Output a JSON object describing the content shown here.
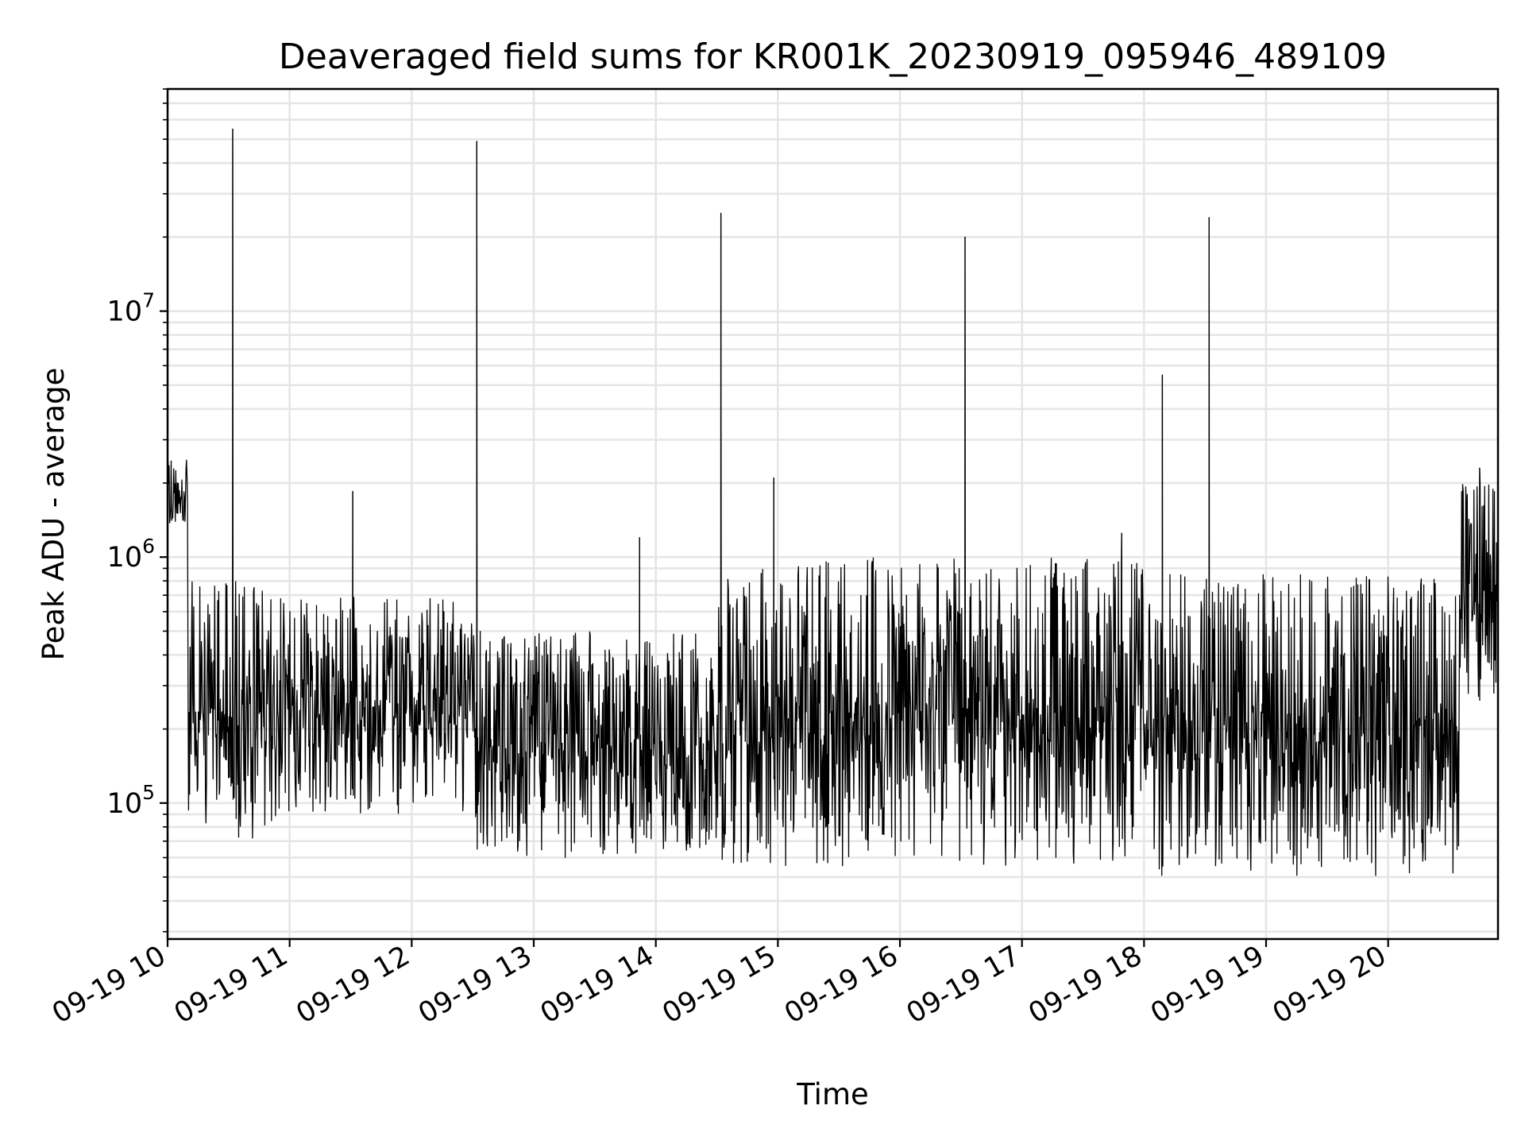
{
  "chart_data": {
    "type": "line",
    "title": "Deaveraged field sums for KR001K_20230919_095946_489109",
    "xlabel": "Time",
    "ylabel": "Peak ADU - average",
    "yscale": "log",
    "grid": true,
    "xlim": [
      "2023-09-19 10:00",
      "2023-09-19 20:54"
    ],
    "ylim": [
      28000,
      80000000
    ],
    "x_ticks": [
      {
        "label": "09-19 10",
        "value": "2023-09-19 10:00"
      },
      {
        "label": "09-19 11",
        "value": "2023-09-19 11:00"
      },
      {
        "label": "09-19 12",
        "value": "2023-09-19 12:00"
      },
      {
        "label": "09-19 13",
        "value": "2023-09-19 13:00"
      },
      {
        "label": "09-19 14",
        "value": "2023-09-19 14:00"
      },
      {
        "label": "09-19 15",
        "value": "2023-09-19 15:00"
      },
      {
        "label": "09-19 16",
        "value": "2023-09-19 16:00"
      },
      {
        "label": "09-19 17",
        "value": "2023-09-19 17:00"
      },
      {
        "label": "09-19 18",
        "value": "2023-09-19 18:00"
      },
      {
        "label": "09-19 19",
        "value": "2023-09-19 19:00"
      },
      {
        "label": "09-19 20",
        "value": "2023-09-19 20:00"
      }
    ],
    "y_ticks": [
      {
        "base": "10",
        "exp": "5",
        "value": 100000
      },
      {
        "base": "10",
        "exp": "6",
        "value": 1000000
      },
      {
        "base": "10",
        "exp": "7",
        "value": 10000000
      }
    ],
    "envelope": [
      {
        "from": "10:00",
        "to": "10:10",
        "low": 1300000,
        "high": 2500000
      },
      {
        "from": "10:10",
        "to": "11:00",
        "low": 70000,
        "high": 800000
      },
      {
        "from": "11:00",
        "to": "12:30",
        "low": 90000,
        "high": 700000
      },
      {
        "from": "12:30",
        "to": "14:30",
        "low": 60000,
        "high": 500000
      },
      {
        "from": "14:30",
        "to": "18:00",
        "low": 55000,
        "high": 1000000
      },
      {
        "from": "18:00",
        "to": "20:35",
        "low": 50000,
        "high": 850000
      },
      {
        "from": "20:35",
        "to": "20:54",
        "low": 250000,
        "high": 2000000
      }
    ],
    "spikes": [
      {
        "x": "2023-09-19 10:32",
        "y": 55000000
      },
      {
        "x": "2023-09-19 11:31",
        "y": 1850000
      },
      {
        "x": "2023-09-19 12:32",
        "y": 49000000
      },
      {
        "x": "2023-09-19 13:52",
        "y": 1200000
      },
      {
        "x": "2023-09-19 14:32",
        "y": 25000000
      },
      {
        "x": "2023-09-19 14:58",
        "y": 2100000
      },
      {
        "x": "2023-09-19 16:32",
        "y": 20000000
      },
      {
        "x": "2023-09-19 17:49",
        "y": 1250000
      },
      {
        "x": "2023-09-19 18:09",
        "y": 5500000
      },
      {
        "x": "2023-09-19 18:32",
        "y": 24000000
      },
      {
        "x": "2023-09-19 20:45",
        "y": 2300000
      }
    ]
  }
}
